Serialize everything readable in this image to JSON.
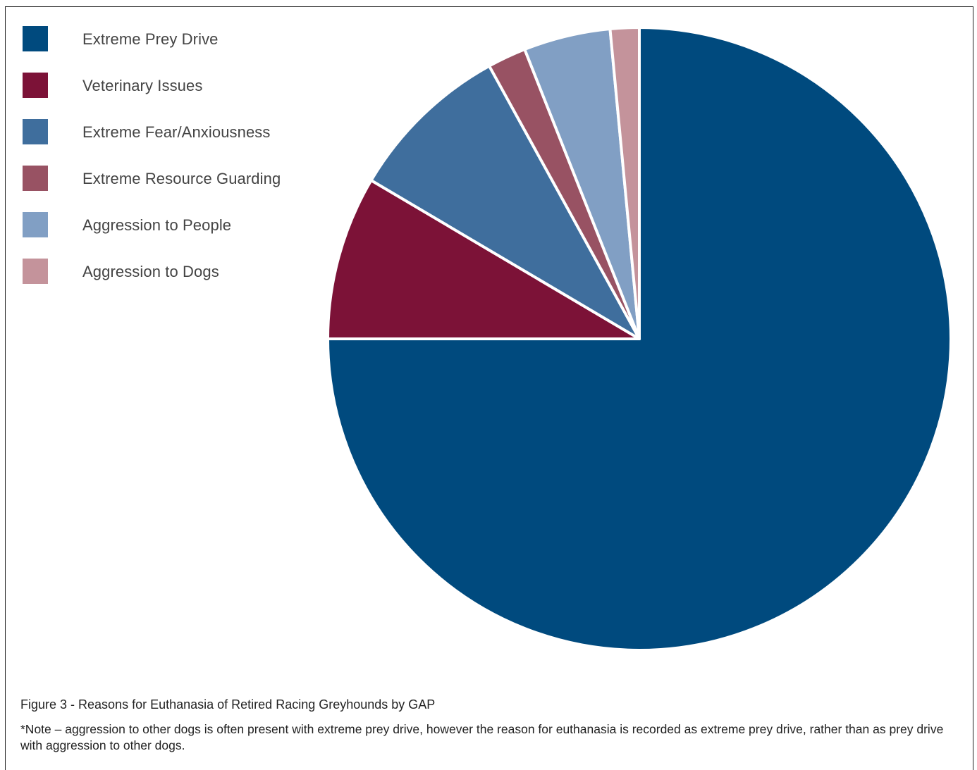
{
  "chart_data": {
    "type": "pie",
    "title": "",
    "slices": [
      {
        "label": "Extreme Prey Drive",
        "value": 75,
        "color": "#004a7e"
      },
      {
        "label": "Veterinary Issues",
        "value": 8.5,
        "color": "#7c1237"
      },
      {
        "label": "Extreme Fear/Anxiousness",
        "value": 8.5,
        "color": "#3f6e9d"
      },
      {
        "label": "Extreme Resource Guarding",
        "value": 2,
        "color": "#985263"
      },
      {
        "label": "Aggression to People",
        "value": 4.5,
        "color": "#819fc4"
      },
      {
        "label": "Aggression to Dogs",
        "value": 1.5,
        "color": "#c4939b"
      }
    ],
    "legend_position": "top-left",
    "start_angle": "12 o'clock",
    "direction": "clockwise"
  },
  "caption": "Figure 3 - Reasons for Euthanasia of Retired Racing Greyhounds by GAP",
  "note": "*Note – aggression to other dogs is often present with extreme prey drive, however the reason for euthanasia is recorded as extreme prey drive, rather than as prey drive with aggression to other dogs."
}
